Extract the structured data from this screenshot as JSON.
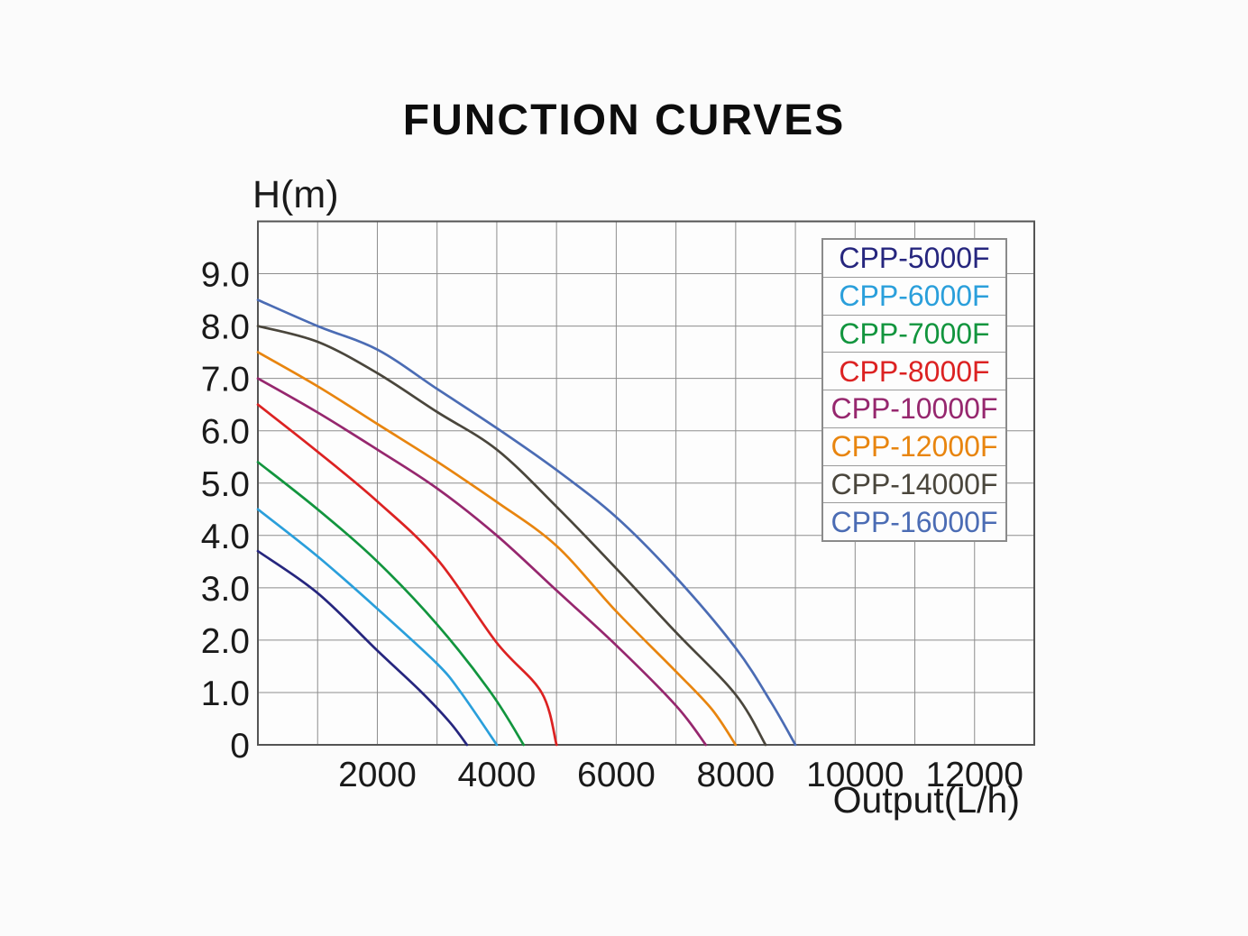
{
  "title": "FUNCTION CURVES",
  "axes": {
    "y_title": "H(m)",
    "x_title": "Output(L/h)"
  },
  "style": {
    "page_background": "#fbfbfb",
    "plot_background": "#fdfdfd",
    "grid_color": "#8d8d8d",
    "border_color": "#545454",
    "text_color": "#1a1a1a"
  },
  "chart_data": {
    "type": "line",
    "title": "FUNCTION CURVES",
    "xlabel": "Output(L/h)",
    "ylabel": "H(m)",
    "xlim": [
      0,
      13000
    ],
    "ylim": [
      0,
      10
    ],
    "grid": "on",
    "grid_x_step": 1000,
    "grid_y_step": 1,
    "legend_position": "upper right",
    "x_ticks": [
      {
        "value": 2000,
        "label": "2000"
      },
      {
        "value": 4000,
        "label": "4000"
      },
      {
        "value": 6000,
        "label": "6000"
      },
      {
        "value": 8000,
        "label": "8000"
      },
      {
        "value": 10000,
        "label": "10000"
      },
      {
        "value": 12000,
        "label": "12000"
      }
    ],
    "y_ticks": [
      {
        "value": 0,
        "label": "0"
      },
      {
        "value": 1,
        "label": "1.0"
      },
      {
        "value": 2,
        "label": "2.0"
      },
      {
        "value": 3,
        "label": "3.0"
      },
      {
        "value": 4,
        "label": "4.0"
      },
      {
        "value": 5,
        "label": "5.0"
      },
      {
        "value": 6,
        "label": "6.0"
      },
      {
        "value": 7,
        "label": "7.0"
      },
      {
        "value": 8,
        "label": "8.0"
      },
      {
        "value": 9,
        "label": "9.0"
      }
    ],
    "series": [
      {
        "name": "CPP-5000F",
        "color": "#26267e",
        "points": [
          [
            0,
            3.7
          ],
          [
            1000,
            2.9
          ],
          [
            2000,
            1.8
          ],
          [
            2700,
            1.05
          ],
          [
            3200,
            0.45
          ],
          [
            3500,
            0
          ]
        ]
      },
      {
        "name": "CPP-6000F",
        "color": "#2a9fdb",
        "points": [
          [
            0,
            4.5
          ],
          [
            1000,
            3.6
          ],
          [
            2000,
            2.6
          ],
          [
            3000,
            1.55
          ],
          [
            3400,
            1.0
          ],
          [
            4000,
            0
          ]
        ]
      },
      {
        "name": "CPP-7000F",
        "color": "#12953e",
        "points": [
          [
            0,
            5.4
          ],
          [
            1000,
            4.5
          ],
          [
            2000,
            3.5
          ],
          [
            3000,
            2.3
          ],
          [
            3900,
            1.0
          ],
          [
            4450,
            0
          ]
        ]
      },
      {
        "name": "CPP-8000F",
        "color": "#dc2222",
        "points": [
          [
            0,
            6.5
          ],
          [
            1000,
            5.6
          ],
          [
            2000,
            4.65
          ],
          [
            3000,
            3.55
          ],
          [
            4000,
            1.95
          ],
          [
            4750,
            1.0
          ],
          [
            5000,
            0
          ]
        ]
      },
      {
        "name": "CPP-10000F",
        "color": "#96276e",
        "points": [
          [
            0,
            7.0
          ],
          [
            1000,
            6.35
          ],
          [
            2000,
            5.64
          ],
          [
            3000,
            4.9
          ],
          [
            4000,
            4.0
          ],
          [
            5000,
            2.95
          ],
          [
            6000,
            1.9
          ],
          [
            7000,
            0.75
          ],
          [
            7500,
            0
          ]
        ]
      },
      {
        "name": "CPP-12000F",
        "color": "#e8850f",
        "points": [
          [
            0,
            7.5
          ],
          [
            1000,
            6.85
          ],
          [
            2000,
            6.13
          ],
          [
            3000,
            5.41
          ],
          [
            4000,
            4.64
          ],
          [
            5000,
            3.8
          ],
          [
            6000,
            2.55
          ],
          [
            7000,
            1.4
          ],
          [
            7600,
            0.68
          ],
          [
            8000,
            0
          ]
        ]
      },
      {
        "name": "CPP-14000F",
        "color": "#4a463c",
        "points": [
          [
            0,
            8.0
          ],
          [
            1000,
            7.7
          ],
          [
            2000,
            7.1
          ],
          [
            3000,
            6.36
          ],
          [
            4000,
            5.64
          ],
          [
            5000,
            4.55
          ],
          [
            6000,
            3.37
          ],
          [
            7000,
            2.15
          ],
          [
            8000,
            0.96
          ],
          [
            8500,
            0
          ]
        ]
      },
      {
        "name": "CPP-16000F",
        "color": "#4b6cb4",
        "points": [
          [
            0,
            8.5
          ],
          [
            1000,
            8.0
          ],
          [
            2000,
            7.55
          ],
          [
            3000,
            6.8
          ],
          [
            4000,
            6.05
          ],
          [
            5000,
            5.25
          ],
          [
            6000,
            4.35
          ],
          [
            7000,
            3.2
          ],
          [
            8000,
            1.85
          ],
          [
            8600,
            0.8
          ],
          [
            9000,
            0
          ]
        ]
      }
    ]
  }
}
